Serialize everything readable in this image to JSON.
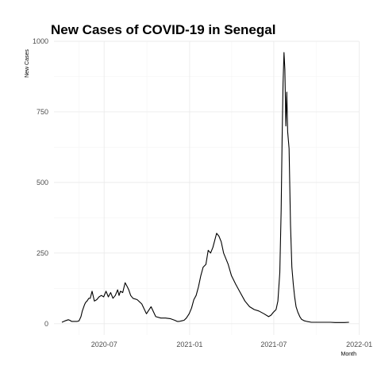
{
  "chart_data": {
    "type": "line",
    "title": "New Cases of COVID-19 in Senegal",
    "xlabel": "Month",
    "ylabel": "New Cases",
    "x_type": "date",
    "xlim": [
      "2020-03-15",
      "2021-12-31"
    ],
    "ylim": [
      -40,
      1000
    ],
    "x_ticks": [
      "2020-07-01",
      "2021-01-01",
      "2021-07-01",
      "2022-01-01"
    ],
    "x_tick_labels": [
      "2020-07",
      "2021-01",
      "2021-07",
      "2022-01"
    ],
    "y_ticks": [
      0,
      250,
      500,
      750,
      1000
    ],
    "y_tick_labels": [
      "0",
      "250",
      "500",
      "750",
      "1000"
    ],
    "grid": true,
    "legend": "none",
    "series": [
      {
        "x": [
          "2020-04-01",
          "2020-04-08",
          "2020-04-15",
          "2020-04-18",
          "2020-04-22",
          "2020-04-29",
          "2020-05-04",
          "2020-05-08",
          "2020-05-12",
          "2020-05-15",
          "2020-05-20",
          "2020-05-22",
          "2020-05-25",
          "2020-05-29",
          "2020-06-01",
          "2020-06-05",
          "2020-06-10",
          "2020-06-15",
          "2020-06-20",
          "2020-06-25",
          "2020-06-30",
          "2020-07-05",
          "2020-07-10",
          "2020-07-15",
          "2020-07-20",
          "2020-07-25",
          "2020-07-30",
          "2020-08-02",
          "2020-08-05",
          "2020-08-10",
          "2020-08-15",
          "2020-08-20",
          "2020-08-23",
          "2020-08-27",
          "2020-09-01",
          "2020-09-10",
          "2020-09-20",
          "2020-09-30",
          "2020-10-10",
          "2020-10-20",
          "2020-10-31",
          "2020-11-10",
          "2020-11-20",
          "2020-11-30",
          "2020-12-05",
          "2020-12-10",
          "2020-12-15",
          "2020-12-20",
          "2020-12-25",
          "2020-12-31",
          "2021-01-05",
          "2021-01-10",
          "2021-01-15",
          "2021-01-20",
          "2021-01-25",
          "2021-01-30",
          "2021-02-05",
          "2021-02-10",
          "2021-02-15",
          "2021-02-20",
          "2021-02-28",
          "2021-03-05",
          "2021-03-10",
          "2021-03-15",
          "2021-03-20",
          "2021-03-25",
          "2021-04-01",
          "2021-04-10",
          "2021-04-20",
          "2021-04-30",
          "2021-05-10",
          "2021-05-20",
          "2021-05-30",
          "2021-06-10",
          "2021-06-20",
          "2021-06-25",
          "2021-06-30",
          "2021-07-03",
          "2021-07-06",
          "2021-07-10",
          "2021-07-14",
          "2021-07-17",
          "2021-07-19",
          "2021-07-21",
          "2021-07-23",
          "2021-07-25",
          "2021-07-27",
          "2021-07-29",
          "2021-07-31",
          "2021-08-03",
          "2021-08-06",
          "2021-08-09",
          "2021-08-12",
          "2021-08-15",
          "2021-08-18",
          "2021-08-22",
          "2021-08-26",
          "2021-08-30",
          "2021-09-05",
          "2021-09-10",
          "2021-09-20",
          "2021-09-30",
          "2021-10-10",
          "2021-10-20",
          "2021-10-31",
          "2021-11-10",
          "2021-11-20",
          "2021-11-30",
          "2021-12-10"
        ],
        "y": [
          5,
          10,
          14,
          12,
          8,
          8,
          8,
          10,
          25,
          45,
          68,
          75,
          80,
          90,
          90,
          115,
          80,
          85,
          95,
          100,
          95,
          115,
          95,
          110,
          90,
          100,
          120,
          100,
          115,
          110,
          145,
          130,
          120,
          100,
          90,
          85,
          70,
          35,
          60,
          25,
          20,
          20,
          18,
          12,
          8,
          8,
          10,
          12,
          20,
          35,
          55,
          85,
          100,
          130,
          170,
          200,
          210,
          260,
          250,
          270,
          320,
          310,
          290,
          250,
          230,
          210,
          170,
          140,
          110,
          80,
          60,
          50,
          45,
          35,
          25,
          30,
          40,
          45,
          50,
          80,
          180,
          400,
          650,
          850,
          960,
          900,
          700,
          820,
          680,
          620,
          350,
          200,
          140,
          95,
          60,
          40,
          25,
          15,
          10,
          8,
          5,
          5,
          5,
          5,
          5,
          4,
          4,
          4,
          5
        ]
      }
    ]
  }
}
